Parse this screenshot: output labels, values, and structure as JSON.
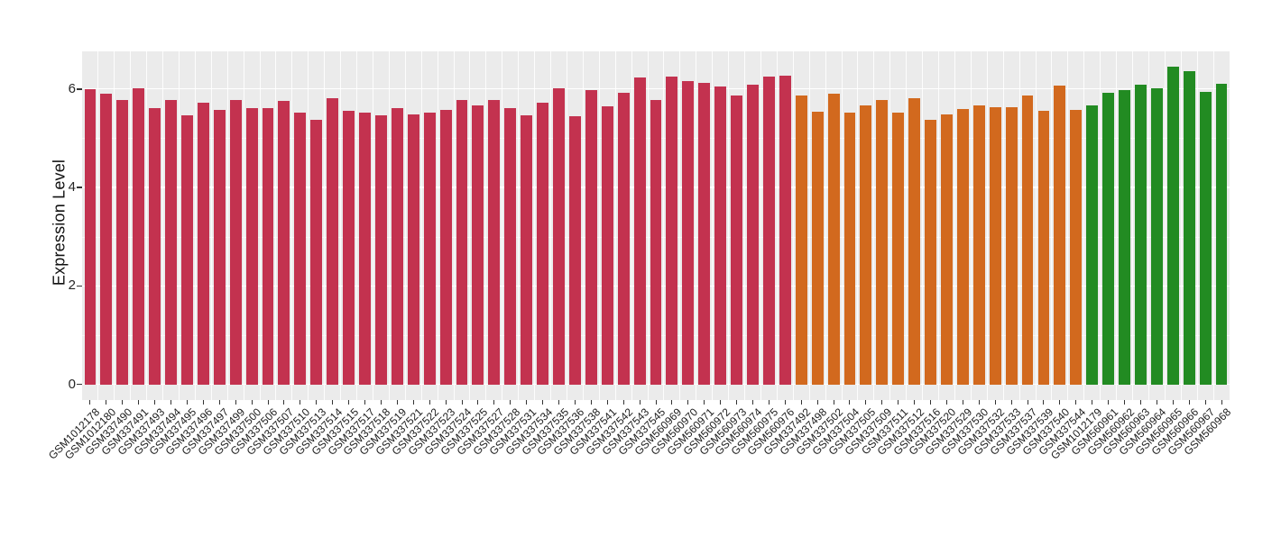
{
  "chart_data": {
    "type": "bar",
    "title": "",
    "xlabel": "",
    "ylabel": "Expression Level",
    "ylim": [
      0,
      6.77
    ],
    "y_ticks": [
      0,
      2,
      4,
      6
    ],
    "y_tick_labels": [
      "0",
      "2",
      "4",
      "6"
    ],
    "y_minor_gridlines": [
      1,
      3,
      5
    ],
    "legend": "none",
    "grid": "on",
    "panel_background": "#EBEBEB",
    "gridline_color": "#FFFFFF",
    "tick_color": "#333333",
    "text_color": "#1A1A1A",
    "palette": {
      "red": "#C3324F",
      "orange": "#D2691E",
      "green": "#228B22"
    },
    "bars": [
      {
        "label": "GSM1012178",
        "value": 5.99,
        "group": "red"
      },
      {
        "label": "GSM1012180",
        "value": 5.9,
        "group": "red"
      },
      {
        "label": "GSM337490",
        "value": 5.78,
        "group": "red"
      },
      {
        "label": "GSM337491",
        "value": 6.01,
        "group": "red"
      },
      {
        "label": "GSM337493",
        "value": 5.62,
        "group": "red"
      },
      {
        "label": "GSM337494",
        "value": 5.78,
        "group": "red"
      },
      {
        "label": "GSM337495",
        "value": 5.46,
        "group": "red"
      },
      {
        "label": "GSM337496",
        "value": 5.72,
        "group": "red"
      },
      {
        "label": "GSM337497",
        "value": 5.57,
        "group": "red"
      },
      {
        "label": "GSM337499",
        "value": 5.78,
        "group": "red"
      },
      {
        "label": "GSM337500",
        "value": 5.61,
        "group": "red"
      },
      {
        "label": "GSM337506",
        "value": 5.61,
        "group": "red"
      },
      {
        "label": "GSM337507",
        "value": 5.76,
        "group": "red"
      },
      {
        "label": "GSM337510",
        "value": 5.53,
        "group": "red"
      },
      {
        "label": "GSM337513",
        "value": 5.37,
        "group": "red"
      },
      {
        "label": "GSM337514",
        "value": 5.81,
        "group": "red"
      },
      {
        "label": "GSM337515",
        "value": 5.55,
        "group": "red"
      },
      {
        "label": "GSM337517",
        "value": 5.52,
        "group": "red"
      },
      {
        "label": "GSM337518",
        "value": 5.46,
        "group": "red"
      },
      {
        "label": "GSM337519",
        "value": 5.62,
        "group": "red"
      },
      {
        "label": "GSM337521",
        "value": 5.49,
        "group": "red"
      },
      {
        "label": "GSM337522",
        "value": 5.52,
        "group": "red"
      },
      {
        "label": "GSM337523",
        "value": 5.58,
        "group": "red"
      },
      {
        "label": "GSM337524",
        "value": 5.78,
        "group": "red"
      },
      {
        "label": "GSM337525",
        "value": 5.67,
        "group": "red"
      },
      {
        "label": "GSM337527",
        "value": 5.78,
        "group": "red"
      },
      {
        "label": "GSM337528",
        "value": 5.61,
        "group": "red"
      },
      {
        "label": "GSM337531",
        "value": 5.47,
        "group": "red"
      },
      {
        "label": "GSM337534",
        "value": 5.72,
        "group": "red"
      },
      {
        "label": "GSM337535",
        "value": 6.01,
        "group": "red"
      },
      {
        "label": "GSM337536",
        "value": 5.45,
        "group": "red"
      },
      {
        "label": "GSM337538",
        "value": 5.98,
        "group": "red"
      },
      {
        "label": "GSM337541",
        "value": 5.65,
        "group": "red"
      },
      {
        "label": "GSM337542",
        "value": 5.92,
        "group": "red"
      },
      {
        "label": "GSM337543",
        "value": 6.23,
        "group": "red"
      },
      {
        "label": "GSM337545",
        "value": 5.78,
        "group": "red"
      },
      {
        "label": "GSM560969",
        "value": 6.25,
        "group": "red"
      },
      {
        "label": "GSM560970",
        "value": 6.16,
        "group": "red"
      },
      {
        "label": "GSM560971",
        "value": 6.13,
        "group": "red"
      },
      {
        "label": "GSM560972",
        "value": 6.05,
        "group": "red"
      },
      {
        "label": "GSM560973",
        "value": 5.87,
        "group": "red"
      },
      {
        "label": "GSM560974",
        "value": 6.09,
        "group": "red"
      },
      {
        "label": "GSM560975",
        "value": 6.25,
        "group": "red"
      },
      {
        "label": "GSM560976",
        "value": 6.27,
        "group": "red"
      },
      {
        "label": "GSM337492",
        "value": 5.87,
        "group": "orange"
      },
      {
        "label": "GSM337498",
        "value": 5.54,
        "group": "orange"
      },
      {
        "label": "GSM337502",
        "value": 5.9,
        "group": "orange"
      },
      {
        "label": "GSM337504",
        "value": 5.53,
        "group": "orange"
      },
      {
        "label": "GSM337505",
        "value": 5.67,
        "group": "orange"
      },
      {
        "label": "GSM337509",
        "value": 5.78,
        "group": "orange"
      },
      {
        "label": "GSM337511",
        "value": 5.53,
        "group": "orange"
      },
      {
        "label": "GSM337512",
        "value": 5.81,
        "group": "orange"
      },
      {
        "label": "GSM337516",
        "value": 5.38,
        "group": "orange"
      },
      {
        "label": "GSM337520",
        "value": 5.49,
        "group": "orange"
      },
      {
        "label": "GSM337529",
        "value": 5.6,
        "group": "orange"
      },
      {
        "label": "GSM337530",
        "value": 5.67,
        "group": "orange"
      },
      {
        "label": "GSM337532",
        "value": 5.63,
        "group": "orange"
      },
      {
        "label": "GSM337533",
        "value": 5.63,
        "group": "orange"
      },
      {
        "label": "GSM337537",
        "value": 5.87,
        "group": "orange"
      },
      {
        "label": "GSM337539",
        "value": 5.56,
        "group": "orange"
      },
      {
        "label": "GSM337540",
        "value": 6.07,
        "group": "orange"
      },
      {
        "label": "GSM337544",
        "value": 5.57,
        "group": "orange"
      },
      {
        "label": "GSM1012179",
        "value": 5.67,
        "group": "green"
      },
      {
        "label": "GSM560961",
        "value": 5.93,
        "group": "green"
      },
      {
        "label": "GSM560962",
        "value": 5.98,
        "group": "green"
      },
      {
        "label": "GSM560963",
        "value": 6.08,
        "group": "green"
      },
      {
        "label": "GSM560964",
        "value": 6.02,
        "group": "green"
      },
      {
        "label": "GSM560965",
        "value": 6.45,
        "group": "green"
      },
      {
        "label": "GSM560966",
        "value": 6.37,
        "group": "green"
      },
      {
        "label": "GSM560967",
        "value": 5.95,
        "group": "green"
      },
      {
        "label": "GSM560968",
        "value": 6.1,
        "group": "green"
      }
    ]
  }
}
